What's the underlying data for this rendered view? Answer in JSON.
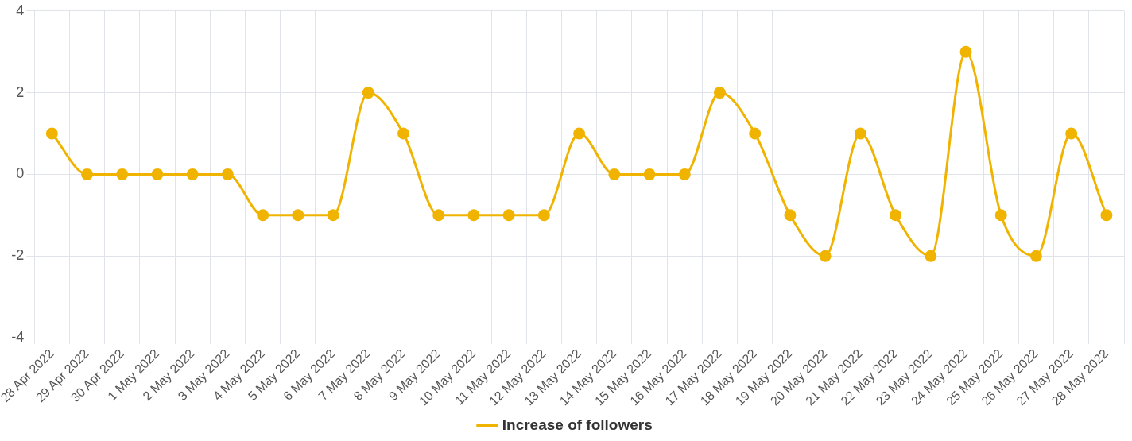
{
  "chart_data": {
    "type": "line",
    "categories": [
      "28 Apr 2022",
      "29 Apr 2022",
      "30 Apr 2022",
      "1 May 2022",
      "2 May 2022",
      "3 May 2022",
      "4 May 2022",
      "5 May 2022",
      "6 May 2022",
      "7 May 2022",
      "8 May 2022",
      "9 May 2022",
      "10 May 2022",
      "11 May 2022",
      "12 May 2022",
      "13 May 2022",
      "14 May 2022",
      "15 May 2022",
      "16 May 2022",
      "17 May 2022",
      "18 May 2022",
      "19 May 2022",
      "20 May 2022",
      "21 May 2022",
      "22 May 2022",
      "23 May 2022",
      "24 May 2022",
      "25 May 2022",
      "26 May 2022",
      "27 May 2022",
      "28 May 2022"
    ],
    "series": [
      {
        "name": "Increase of followers",
        "color": "#f0b400",
        "values": [
          1,
          0,
          0,
          0,
          0,
          0,
          -1,
          -1,
          -1,
          2,
          1,
          -1,
          -1,
          -1,
          -1,
          1,
          0,
          0,
          0,
          2,
          1,
          -1,
          -2,
          1,
          -1,
          -2,
          3,
          -1,
          -2,
          1,
          -1
        ]
      }
    ],
    "ylim": [
      -4,
      4
    ],
    "yticks": [
      -4,
      -2,
      0,
      2,
      4
    ],
    "grid": true,
    "legend": "bottom",
    "marker": "circle"
  }
}
